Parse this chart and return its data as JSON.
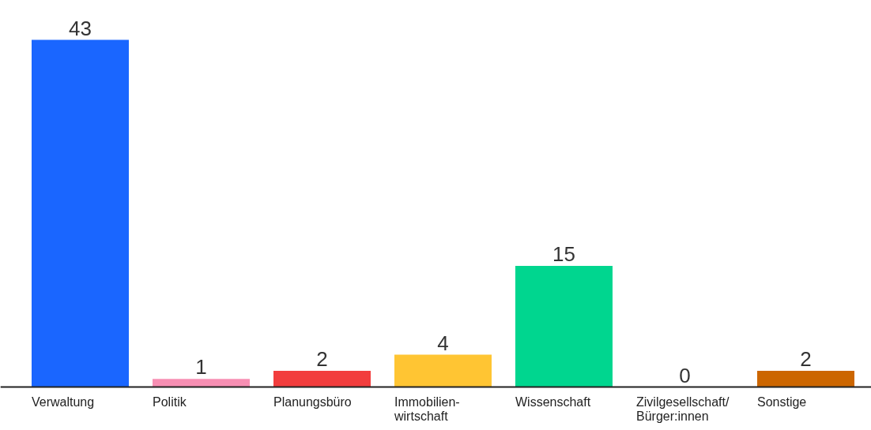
{
  "chart_data": {
    "type": "bar",
    "categories": [
      "Verwaltung",
      "Politik",
      "Planungsbüro",
      "Immobilien-\nwirtschaft",
      "Wissenschaft",
      "Zivilgesellschaft/\nBürger:innen",
      "Sonstige"
    ],
    "values": [
      43,
      1,
      2,
      4,
      15,
      0,
      2
    ],
    "colors": [
      "#1a66ff",
      "#f78fb3",
      "#f23d3d",
      "#ffc533",
      "#00d68f",
      "#9e9e9e",
      "#cc6600"
    ],
    "data_labels": true
  }
}
